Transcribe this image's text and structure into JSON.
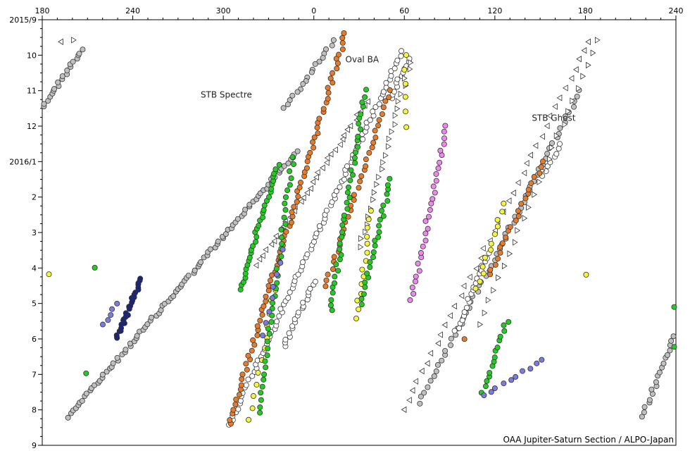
{
  "chart_data": {
    "type": "scatter",
    "x_axis": {
      "position": "top",
      "ticks": [
        {
          "value": 180,
          "label": "180"
        },
        {
          "value": 240,
          "label": "240"
        },
        {
          "value": 300,
          "label": "300"
        },
        {
          "value": 360,
          "label": "0"
        },
        {
          "value": 420,
          "label": "60"
        },
        {
          "value": 480,
          "label": "120"
        },
        {
          "value": 540,
          "label": "180"
        },
        {
          "value": 600,
          "label": "240"
        }
      ],
      "range": [
        180,
        600
      ]
    },
    "y_axis": {
      "inverted": true,
      "ticks": [
        {
          "value": 0,
          "label": "2015/9"
        },
        {
          "value": 1,
          "label": "10"
        },
        {
          "value": 2,
          "label": "11"
        },
        {
          "value": 3,
          "label": "12"
        },
        {
          "value": 4,
          "label": "2016/1"
        },
        {
          "value": 5,
          "label": "2"
        },
        {
          "value": 6,
          "label": "3"
        },
        {
          "value": 7,
          "label": "4"
        },
        {
          "value": 8,
          "label": "5"
        },
        {
          "value": 9,
          "label": "6"
        },
        {
          "value": 10,
          "label": "7"
        },
        {
          "value": 11,
          "label": "8"
        },
        {
          "value": 12,
          "label": "9"
        }
      ],
      "range": [
        0,
        12
      ]
    },
    "annotations": [
      {
        "text": "Oval BA",
        "x": 392,
        "y": 1.2
      },
      {
        "text": "STB Spectre",
        "x": 302,
        "y": 2.2
      },
      {
        "text": "STB Ghost",
        "x": 519,
        "y": 2.85
      }
    ],
    "credit": "OAA Jupiter-Saturn Section / ALPO-Japan",
    "colors": {
      "gray": "#c0c0c0",
      "white": "#ffffff",
      "orange": "#e87b2a",
      "green": "#22cc22",
      "yellow": "#f5f53a",
      "blue": "#7b7be0",
      "navy": "#1a237e",
      "pink": "#ee88ee"
    },
    "series": [
      {
        "color": "gray",
        "shape": "circle",
        "segments": [
          {
            "x0": 178,
            "y0": 2.6,
            "x1": 206,
            "y1": 0.85,
            "n": 22
          },
          {
            "x0": 197,
            "y0": 11.2,
            "x1": 349,
            "y1": 3.7,
            "n": 95
          },
          {
            "x0": 373,
            "y0": 0.6,
            "x1": 341,
            "y1": 2.5,
            "n": 18
          },
          {
            "x0": 430,
            "y0": 10.8,
            "x1": 537,
            "y1": 2.0,
            "n": 60
          },
          {
            "x0": 578,
            "y0": 11.2,
            "x1": 600,
            "y1": 8.8,
            "n": 20
          }
        ]
      },
      {
        "color": "white",
        "shape": "circle",
        "segments": [
          {
            "x0": 304,
            "y0": 11.4,
            "x1": 418,
            "y1": 0.9,
            "n": 95
          },
          {
            "x0": 340,
            "y0": 9.2,
            "x1": 360,
            "y1": 7.4,
            "n": 20
          },
          {
            "x0": 411,
            "y0": 2.2,
            "x1": 423,
            "y1": 1.1,
            "n": 12
          },
          {
            "x0": 454,
            "y0": 8.8,
            "x1": 476,
            "y1": 6.6,
            "n": 20
          },
          {
            "x0": 512,
            "y0": 4.4,
            "x1": 524,
            "y1": 3.5,
            "n": 8
          }
        ]
      },
      {
        "color": "white",
        "shape": "triangle-left",
        "segments": [
          {
            "x0": 323,
            "y0": 6.9,
            "x1": 396,
            "y1": 2.3,
            "n": 35
          },
          {
            "x0": 419,
            "y0": 11.0,
            "x1": 543,
            "y1": 0.6,
            "n": 40
          },
          {
            "x0": 193,
            "y0": 0.6,
            "x1": 193,
            "y1": 0.6,
            "n": 1
          }
        ]
      },
      {
        "color": "white",
        "shape": "triangle-right",
        "segments": [
          {
            "x0": 202,
            "y0": 0.6,
            "x1": 202,
            "y1": 0.6,
            "n": 1
          },
          {
            "x0": 390,
            "y0": 6.4,
            "x1": 424,
            "y1": 1.2,
            "n": 25
          },
          {
            "x0": 470,
            "y0": 8.6,
            "x1": 548,
            "y1": 0.6,
            "n": 25
          }
        ]
      },
      {
        "color": "orange",
        "shape": "circle",
        "segments": [
          {
            "x0": 304,
            "y0": 11.4,
            "x1": 381,
            "y1": 0.4,
            "n": 80
          },
          {
            "x0": 368,
            "y0": 7.5,
            "x1": 410,
            "y1": 2.0,
            "n": 35
          },
          {
            "x0": 476,
            "y0": 7.2,
            "x1": 512,
            "y1": 4.0,
            "n": 22
          },
          {
            "x0": 460,
            "y0": 9.0,
            "x1": 460,
            "y1": 9.0,
            "n": 1
          }
        ]
      },
      {
        "color": "yellow",
        "shape": "circle",
        "segments": [
          {
            "x0": 318,
            "y0": 11.3,
            "x1": 334,
            "y1": 7.6,
            "n": 12
          },
          {
            "x0": 388,
            "y0": 8.4,
            "x1": 398,
            "y1": 5.4,
            "n": 14
          },
          {
            "x0": 184,
            "y0": 7.2,
            "x1": 184,
            "y1": 7.2,
            "n": 1
          },
          {
            "x0": 540,
            "y0": 7.2,
            "x1": 540,
            "y1": 7.2,
            "n": 1
          },
          {
            "x0": 421,
            "y0": 1.0,
            "x1": 421,
            "y1": 3.0,
            "n": 6
          },
          {
            "x0": 468,
            "y0": 7.6,
            "x1": 486,
            "y1": 5.2,
            "n": 12
          }
        ]
      },
      {
        "color": "green",
        "shape": "circle",
        "segments": [
          {
            "x0": 323,
            "y0": 11.1,
            "x1": 346,
            "y1": 3.9,
            "n": 40
          },
          {
            "x0": 311,
            "y0": 7.6,
            "x1": 336,
            "y1": 4.1,
            "n": 32
          },
          {
            "x0": 371,
            "y0": 8.2,
            "x1": 394,
            "y1": 2.0,
            "n": 40
          },
          {
            "x0": 391,
            "y0": 8.0,
            "x1": 411,
            "y1": 4.5,
            "n": 25
          },
          {
            "x0": 472,
            "y0": 10.5,
            "x1": 488,
            "y1": 8.5,
            "n": 15
          },
          {
            "x0": 209,
            "y0": 10.0,
            "x1": 209,
            "y1": 10.0,
            "n": 1
          },
          {
            "x0": 215,
            "y0": 7.0,
            "x1": 215,
            "y1": 7.0,
            "n": 1
          },
          {
            "x0": 600,
            "y0": 9.2,
            "x1": 600,
            "y1": 7.0,
            "n": 3
          }
        ]
      },
      {
        "color": "blue",
        "shape": "circle",
        "segments": [
          {
            "x0": 221,
            "y0": 8.6,
            "x1": 229,
            "y1": 8.0,
            "n": 5
          },
          {
            "x0": 325,
            "y0": 8.9,
            "x1": 340,
            "y1": 6.5,
            "n": 8
          },
          {
            "x0": 472,
            "y0": 10.6,
            "x1": 512,
            "y1": 9.6,
            "n": 10
          }
        ]
      },
      {
        "color": "navy",
        "shape": "circle",
        "segments": [
          {
            "x0": 229,
            "y0": 9.0,
            "x1": 246,
            "y1": 7.3,
            "n": 28
          }
        ]
      },
      {
        "color": "pink",
        "shape": "circle",
        "segments": [
          {
            "x0": 425,
            "y0": 7.9,
            "x1": 448,
            "y1": 3.0,
            "n": 30
          }
        ]
      }
    ]
  }
}
